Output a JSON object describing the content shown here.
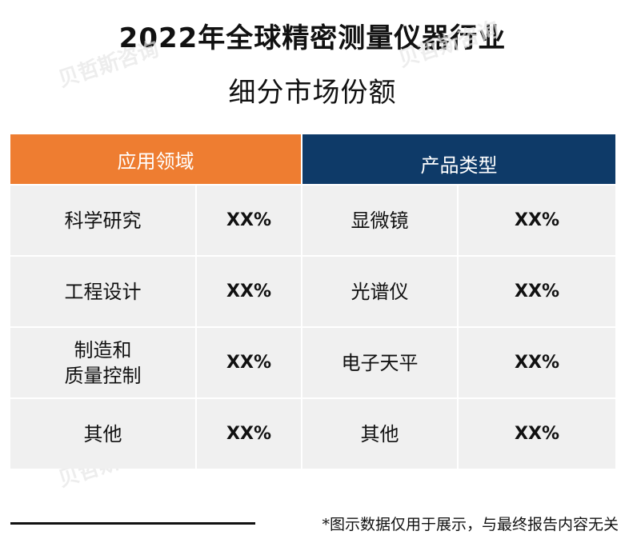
{
  "title": {
    "line1": "2022年全球精密测量仪器行业",
    "line2": "细分市场份额"
  },
  "watermark": "贝哲斯咨询",
  "colors": {
    "left_header": "#ee7d31",
    "right_header": "#0e3a68",
    "cell_bg": "#f0f0f0"
  },
  "table": {
    "left_header": "应用领域",
    "right_header": "产品类型",
    "rows": [
      {
        "app": "科学研究",
        "app_pct": "XX%",
        "product": "显微镜",
        "product_pct": "XX%"
      },
      {
        "app": "工程设计",
        "app_pct": "XX%",
        "product": "光谱仪",
        "product_pct": "XX%"
      },
      {
        "app_line1": "制造和",
        "app_line2": "质量控制",
        "app_pct": "XX%",
        "product": "电子天平",
        "product_pct": "XX%"
      },
      {
        "app": "其他",
        "app_pct": "XX%",
        "product": "其他",
        "product_pct": "XX%"
      }
    ]
  },
  "footer_note": "*图示数据仅用于展示，与最终报告内容无关"
}
